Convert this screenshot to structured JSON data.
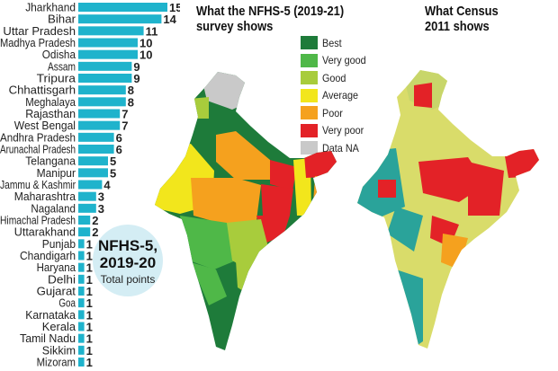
{
  "chart_data": {
    "type": "bar",
    "orientation": "horizontal",
    "categories": [
      "Jharkhand",
      "Bihar",
      "Uttar Pradesh",
      "Madhya Pradesh",
      "Odisha",
      "Assam",
      "Tripura",
      "Chhattisgarh",
      "Meghalaya",
      "Rajasthan",
      "West Bengal",
      "Andhra Pradesh",
      "Arunachal Pradesh",
      "Telangana",
      "Manipur",
      "Jammu & Kashmir",
      "Maharashtra",
      "Nagaland",
      "Himachal Pradesh",
      "Uttarakhand",
      "Punjab",
      "Chandigarh",
      "Haryana",
      "Delhi",
      "Gujarat",
      "Goa",
      "Karnataka",
      "Kerala",
      "Tamil Nadu",
      "Sikkim",
      "Mizoram"
    ],
    "values": [
      15,
      14,
      11,
      10,
      10,
      9,
      9,
      8,
      8,
      7,
      7,
      6,
      6,
      5,
      5,
      4,
      3,
      3,
      2,
      2,
      1,
      1,
      1,
      1,
      1,
      1,
      1,
      1,
      1,
      1,
      1
    ],
    "bar_color": "#1fb3cc",
    "xlim": [
      0,
      15
    ],
    "grid": false
  },
  "bubble": {
    "line1": "NFHS-5,",
    "line2": "2019-20",
    "line3": "Total points"
  },
  "map1": {
    "title_line1": "What the NFHS-5 (2019-21)",
    "title_line2": "survey shows",
    "legend": [
      {
        "label": "Best",
        "color": "#1e7b3a"
      },
      {
        "label": "Very good",
        "color": "#4fb848"
      },
      {
        "label": "Good",
        "color": "#a8cc3c"
      },
      {
        "label": "Average",
        "color": "#f2e61c"
      },
      {
        "label": "Poor",
        "color": "#f5a11e"
      },
      {
        "label": "Very poor",
        "color": "#e32227"
      },
      {
        "label": "Data NA",
        "color": "#c9c9c9"
      }
    ]
  },
  "map2": {
    "title_line1": "What Census",
    "title_line2": "2011 shows"
  }
}
